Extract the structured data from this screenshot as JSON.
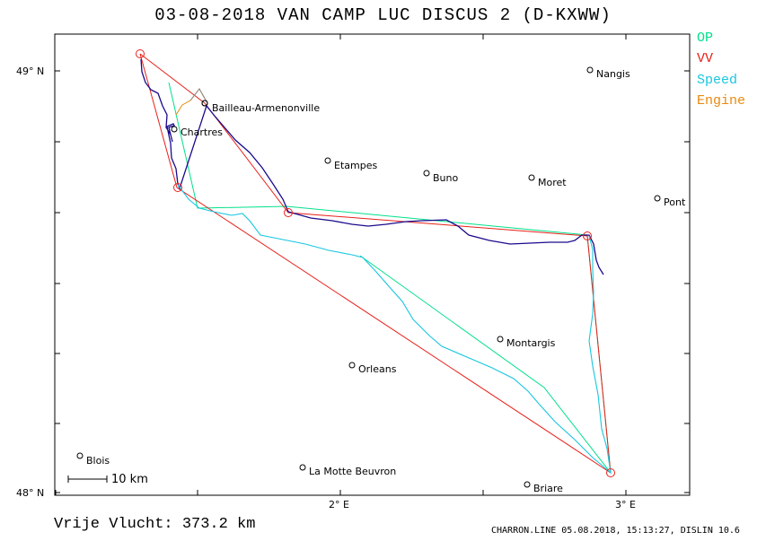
{
  "title": "03-08-2018   VAN CAMP LUC   DISCUS 2 (D-KXWW)",
  "legend": [
    {
      "label": "OP",
      "color": "#00e08a"
    },
    {
      "label": "VV",
      "color": "#e8201a"
    },
    {
      "label": "Speed",
      "color": "#18c6e0"
    },
    {
      "label": "Engine",
      "color": "#e88a10"
    }
  ],
  "axes": {
    "lat_top_label": "49° N",
    "lat_bottom_label": "48° N",
    "lon_mid_label": "2° E",
    "lon_right_label": "3° E"
  },
  "scale_label": "10 km",
  "towns": [
    {
      "name": "Nangis"
    },
    {
      "name": "Bailleau-Armenonville"
    },
    {
      "name": "Chartres"
    },
    {
      "name": "Etampes"
    },
    {
      "name": "Buno"
    },
    {
      "name": "Moret"
    },
    {
      "name": "Pont"
    },
    {
      "name": "Montargis"
    },
    {
      "name": "Orleans"
    },
    {
      "name": "Blois"
    },
    {
      "name": "La Motte Beuvron"
    },
    {
      "name": "Briare"
    }
  ],
  "footer": {
    "distance": "Vrije Vlucht:  373.2 km",
    "info": "CHARRON.LINE 05.08.2018, 15:13:27, DISLIN 10.6"
  },
  "colors": {
    "frame": "#000000",
    "track_blue": "#1a0a8c",
    "track_cyan": "#18c6e0",
    "op": "#00e08a",
    "vv": "#e8201a",
    "engine": "#e88a10"
  }
}
